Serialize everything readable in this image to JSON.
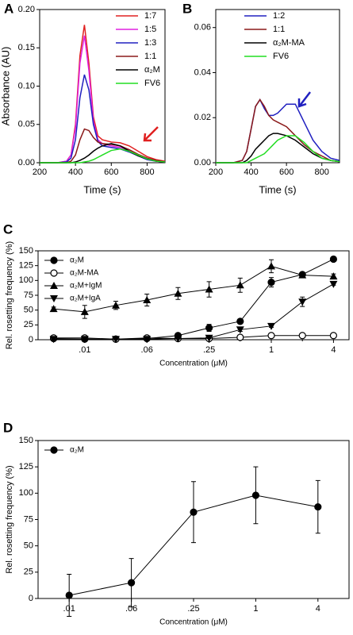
{
  "chart_data": [
    {
      "type": "line",
      "label": "A",
      "xlabel": "Time (s)",
      "ylabel": "Absorbance (AU)",
      "legend": "upper right",
      "xlim": [
        200,
        900
      ],
      "xticks": [
        200,
        400,
        600,
        800
      ],
      "ylim": [
        0,
        0.2
      ],
      "yticks": [
        {
          "value": 0,
          "label": "0.00"
        },
        {
          "value": 0.05,
          "label": "0.05"
        },
        {
          "value": 0.1,
          "label": "0.10"
        },
        {
          "value": 0.15,
          "label": "0.15"
        },
        {
          "value": 0.2,
          "label": "0.20"
        }
      ],
      "x": [
        200,
        300,
        350,
        375,
        400,
        425,
        450,
        475,
        500,
        525,
        550,
        600,
        650,
        700,
        750,
        800,
        850,
        900
      ],
      "series": [
        {
          "name": "1:7",
          "color": "#e02020",
          "values": [
            0,
            0,
            0.002,
            0.01,
            0.05,
            0.14,
            0.18,
            0.13,
            0.06,
            0.035,
            0.03,
            0.027,
            0.026,
            0.022,
            0.015,
            0.008,
            0.004,
            0.002
          ]
        },
        {
          "name": "1:5",
          "color": "#e020e0",
          "values": [
            0,
            0,
            0.002,
            0.01,
            0.045,
            0.13,
            0.166,
            0.12,
            0.055,
            0.03,
            0.025,
            0.022,
            0.02,
            0.016,
            0.01,
            0.005,
            0.002,
            0.001
          ]
        },
        {
          "name": "1:3",
          "color": "#2020c0",
          "values": [
            0,
            0,
            0.001,
            0.006,
            0.03,
            0.085,
            0.115,
            0.095,
            0.05,
            0.028,
            0.022,
            0.02,
            0.018,
            0.014,
            0.009,
            0.004,
            0.002,
            0.001
          ]
        },
        {
          "name": "1:1",
          "color": "#8b1a1a",
          "values": [
            0,
            0,
            0,
            0.002,
            0.01,
            0.03,
            0.044,
            0.042,
            0.033,
            0.027,
            0.025,
            0.024,
            0.022,
            0.017,
            0.011,
            0.006,
            0.003,
            0.001
          ]
        },
        {
          "name": "α₂M",
          "color": "#000000",
          "values": [
            0,
            0,
            0,
            0,
            0.001,
            0.003,
            0.006,
            0.01,
            0.015,
            0.019,
            0.022,
            0.025,
            0.022,
            0.015,
            0.009,
            0.005,
            0.002,
            0.001
          ]
        },
        {
          "name": "FV6",
          "color": "#22dd22",
          "values": [
            0,
            0,
            0,
            0,
            0,
            0,
            0.001,
            0.002,
            0.004,
            0.007,
            0.01,
            0.016,
            0.018,
            0.015,
            0.01,
            0.005,
            0.002,
            0.001
          ]
        }
      ]
    },
    {
      "type": "line",
      "label": "B",
      "xlabel": "Time (s)",
      "legend": "upper center",
      "xlim": [
        200,
        900
      ],
      "xticks": [
        200,
        400,
        600,
        800
      ],
      "ylim": [
        0,
        0.068
      ],
      "yticks": [
        {
          "value": 0,
          "label": "0.00"
        },
        {
          "value": 0.02,
          "label": "0.02"
        },
        {
          "value": 0.04,
          "label": "0.04"
        },
        {
          "value": 0.06,
          "label": "0.06"
        }
      ],
      "x": [
        200,
        300,
        350,
        375,
        400,
        425,
        450,
        475,
        500,
        525,
        550,
        600,
        650,
        700,
        750,
        800,
        850,
        900
      ],
      "series": [
        {
          "name": "1:2",
          "color": "#2020c0",
          "values": [
            0,
            0,
            0.001,
            0.005,
            0.015,
            0.025,
            0.028,
            0.024,
            0.021,
            0.021,
            0.022,
            0.026,
            0.026,
            0.018,
            0.01,
            0.005,
            0.002,
            0.001
          ]
        },
        {
          "name": "1:1",
          "color": "#8b1a1a",
          "values": [
            0,
            0,
            0.001,
            0.005,
            0.015,
            0.025,
            0.028,
            0.025,
            0.021,
            0.019,
            0.018,
            0.016,
            0.012,
            0.008,
            0.005,
            0.003,
            0.001,
            0.0005
          ]
        },
        {
          "name": "α₂M-MA",
          "color": "#000000",
          "values": [
            0,
            0,
            0,
            0.001,
            0.003,
            0.006,
            0.008,
            0.01,
            0.012,
            0.013,
            0.013,
            0.012,
            0.01,
            0.007,
            0.004,
            0.002,
            0.001,
            0.0005
          ]
        },
        {
          "name": "FV6",
          "color": "#22dd22",
          "values": [
            0,
            0,
            0,
            0,
            0.001,
            0.002,
            0.003,
            0.004,
            0.006,
            0.008,
            0.01,
            0.012,
            0.012,
            0.009,
            0.005,
            0.002,
            0.001,
            0.0005
          ]
        }
      ]
    },
    {
      "type": "line",
      "label": "C",
      "xlabel": "Concentration (μM)",
      "ylabel": "Rel. rosetting frequency (%)",
      "legend": "upper left",
      "ylim": [
        0,
        150
      ],
      "yticks": [
        0,
        25,
        50,
        75,
        100,
        125,
        150
      ],
      "categories": [
        null,
        ".01",
        null,
        ".06",
        null,
        ".25",
        null,
        "1",
        null,
        "4"
      ],
      "series": [
        {
          "name": "α₂M",
          "color": "#000000",
          "marker": "circle",
          "values": [
            2,
            1,
            1,
            2,
            7,
            20,
            31,
            97,
            110,
            136
          ],
          "errors": [
            1,
            1,
            1,
            1,
            2,
            6,
            2,
            8,
            3,
            4
          ]
        },
        {
          "name": "α₂M-MA",
          "color": "#000000",
          "marker": "circle-open",
          "values": [
            3,
            3,
            1,
            3,
            2,
            2,
            4,
            7,
            7,
            7
          ],
          "errors": [
            1,
            1,
            1,
            1,
            1,
            1,
            1,
            1,
            1,
            1
          ]
        },
        {
          "name": "α₂M+IgM",
          "color": "#000000",
          "marker": "triangle-up",
          "values": [
            52,
            47,
            58,
            67,
            78,
            85,
            92,
            124,
            109,
            107
          ],
          "errors": [
            3,
            11,
            7,
            10,
            10,
            13,
            12,
            11,
            3,
            4
          ]
        },
        {
          "name": "α₂M+IgA",
          "color": "#000000",
          "marker": "triangle-down",
          "values": [
            1,
            1,
            1,
            1,
            2,
            3,
            17,
            23,
            64,
            94
          ],
          "errors": [
            1,
            1,
            1,
            1,
            1,
            1,
            3,
            2,
            8,
            2
          ]
        }
      ]
    },
    {
      "type": "line",
      "label": "D",
      "xlabel": "Concentration (μM)",
      "ylabel": "Rel. rosetting frequency (%)",
      "legend": "upper left",
      "ylim": [
        0,
        150
      ],
      "yticks": [
        0,
        25,
        50,
        75,
        100,
        125,
        150
      ],
      "categories": [
        ".01",
        ".06",
        ".25",
        "1",
        "4"
      ],
      "series": [
        {
          "name": "α₂M",
          "color": "#000000",
          "marker": "circle",
          "values": [
            3,
            15,
            82,
            98,
            87
          ],
          "errors": [
            20,
            23,
            29,
            27,
            25
          ]
        }
      ]
    }
  ]
}
